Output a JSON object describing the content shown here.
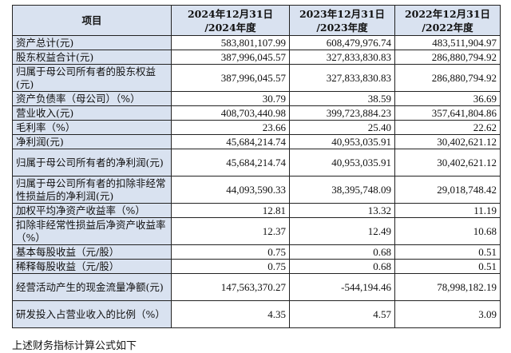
{
  "table": {
    "headers": [
      "项目",
      "2024年12月31日\n/2024年度",
      "2023年12月31日\n/2023年度",
      "2022年12月31日\n/2022年度"
    ],
    "rows": [
      {
        "label": "资产总计(元)",
        "values": [
          "583,801,107.99",
          "608,479,976.74",
          "483,511,904.97"
        ],
        "h": 18
      },
      {
        "label": "股东权益合计(元)",
        "values": [
          "387,996,045.57",
          "327,833,830.83",
          "286,880,794.92"
        ],
        "h": 18
      },
      {
        "label": "归属于母公司所有者的股东权益(元)",
        "values": [
          "387,996,045.57",
          "327,833,830.83",
          "286,880,794.92"
        ],
        "h": 34
      },
      {
        "label": "资产负债率（母公司）（%）",
        "values": [
          "30.79",
          "38.59",
          "36.69"
        ],
        "h": 18
      },
      {
        "label": "营业收入(元)",
        "values": [
          "408,703,440.98",
          "399,723,884.23",
          "357,641,804.86"
        ],
        "h": 18
      },
      {
        "label": "毛利率（%）",
        "values": [
          "23.66",
          "25.40",
          "22.62"
        ],
        "h": 18
      },
      {
        "label": "净利润(元)",
        "values": [
          "45,684,214.74",
          "40,953,035.91",
          "30,402,621.12"
        ],
        "h": 18
      },
      {
        "label": "归属于母公司所有者的净利润(元)",
        "values": [
          "45,684,214.74",
          "40,953,035.91",
          "30,402,621.12"
        ],
        "h": 34
      },
      {
        "label": "归属于母公司所有者的扣除非经常性损益后的净利润(元)",
        "values": [
          "44,093,590.33",
          "38,395,748.09",
          "29,018,748.42"
        ],
        "h": 34
      },
      {
        "label": "加权平均净资产收益率（%）",
        "values": [
          "12.81",
          "13.32",
          "11.19"
        ],
        "h": 18
      },
      {
        "label": "扣除非经常性损益后净资产收益率（%）",
        "values": [
          "12.37",
          "12.49",
          "10.68"
        ],
        "h": 34
      },
      {
        "label": "基本每股收益（元/股）",
        "values": [
          "0.75",
          "0.68",
          "0.51"
        ],
        "h": 18
      },
      {
        "label": "稀释每股收益（元/股）",
        "values": [
          "0.75",
          "0.68",
          "0.51"
        ],
        "h": 18
      },
      {
        "label": "经营活动产生的现金流量净额(元)",
        "values": [
          "147,563,370.27",
          "-544,194.46",
          "78,998,182.19"
        ],
        "h": 34
      },
      {
        "label": "研发投入占营业收入的比例（%）",
        "values": [
          "4.35",
          "4.57",
          "3.09"
        ],
        "h": 34
      }
    ]
  },
  "footnote": "上述财务指标计算公式如下"
}
